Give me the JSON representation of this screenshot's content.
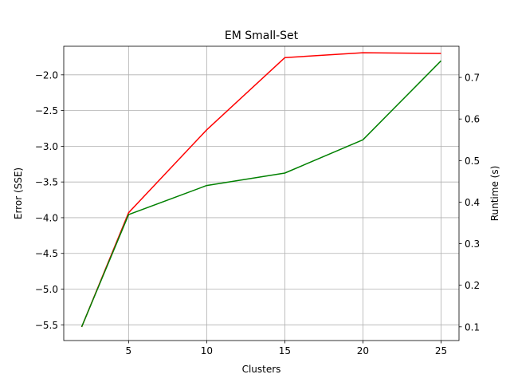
{
  "chart_data": {
    "type": "line",
    "title": "EM Small-Set",
    "xlabel": "Clusters",
    "ylabel": "Error (SSE)",
    "y2label": "Runtime (s)",
    "x": [
      2,
      5,
      10,
      15,
      20,
      25
    ],
    "xlim": [
      0.85,
      26.15
    ],
    "ylim": [
      -5.72,
      -1.6
    ],
    "y2lim": [
      0.067,
      0.775
    ],
    "xticks": [
      5,
      10,
      15,
      20,
      25
    ],
    "yticks": [
      -5.5,
      -5.0,
      -4.5,
      -4.0,
      -3.5,
      -3.0,
      -2.5,
      -2.0
    ],
    "y2ticks": [
      0.1,
      0.2,
      0.3,
      0.4,
      0.5,
      0.6,
      0.7
    ],
    "grid": true,
    "series": [
      {
        "axis": "left",
        "color": "#ff0000",
        "values": [
          -5.53,
          -3.93,
          -2.77,
          -1.76,
          -1.69,
          -1.7
        ]
      },
      {
        "axis": "right",
        "color": "#008000",
        "values": [
          0.1,
          0.37,
          0.44,
          0.47,
          0.55,
          0.74
        ]
      }
    ]
  }
}
